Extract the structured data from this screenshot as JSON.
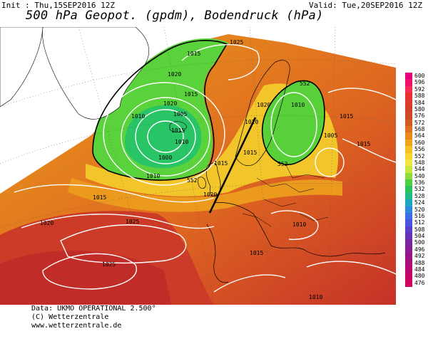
{
  "header": {
    "init": "Init : Thu,15SEP2016 12Z",
    "valid": "Valid: Tue,20SEP2016 12Z",
    "title": "500 hPa Geopot. (gpdm), Bodendruck (hPa)"
  },
  "footer": {
    "line1": "Data: UKMO OPERATIONAL 2.500°",
    "line2": "(C) Wetterzentrale",
    "line3": "www.wetterzentrale.de"
  },
  "isobar_labels": {
    "l1": "1025",
    "l2": "1015",
    "l3": "1020",
    "l4": "1015",
    "l5": "1020",
    "l6": "1010",
    "l7": "1005",
    "l8": "1000",
    "l9": "1010",
    "l10": "552",
    "l11": "1020",
    "l12": "1015",
    "l13": "1020",
    "l14": "1015",
    "l15": "1020",
    "l16": "552",
    "l17": "1010",
    "l18": "1015",
    "l19": "1005",
    "l20": "552",
    "l21": "1015",
    "l22": "1020",
    "l23": "1025",
    "l24": "1025",
    "l25": "1015",
    "l26": "1010",
    "l27": "1010",
    "l28": "1010",
    "l29": "1015",
    "l30": "1015"
  },
  "scale": {
    "labels": [
      "600",
      "596",
      "592",
      "588",
      "584",
      "580",
      "576",
      "572",
      "568",
      "564",
      "560",
      "556",
      "552",
      "548",
      "544",
      "540",
      "536",
      "532",
      "528",
      "524",
      "520",
      "516",
      "512",
      "508",
      "504",
      "500",
      "496",
      "492",
      "488",
      "484",
      "480",
      "476"
    ],
    "colors": [
      "#e6007e",
      "#f0106a",
      "#f52a55",
      "#e8302f",
      "#dc3a2a",
      "#d24028",
      "#cc4a25",
      "#d25a22",
      "#e0701e",
      "#eb8a1a",
      "#f2a41c",
      "#f6bf22",
      "#f8d52a",
      "#f4e640",
      "#c8e640",
      "#8cdc3c",
      "#4cd040",
      "#28c45a",
      "#22b888",
      "#1ea6c0",
      "#2a8ade",
      "#3a6ee6",
      "#4a52e0",
      "#5840cc",
      "#6a30b8",
      "#7a24a4",
      "#8a1a96",
      "#9a1288",
      "#aa0c7a",
      "#b8086e",
      "#c40466",
      "#d0025e"
    ]
  }
}
